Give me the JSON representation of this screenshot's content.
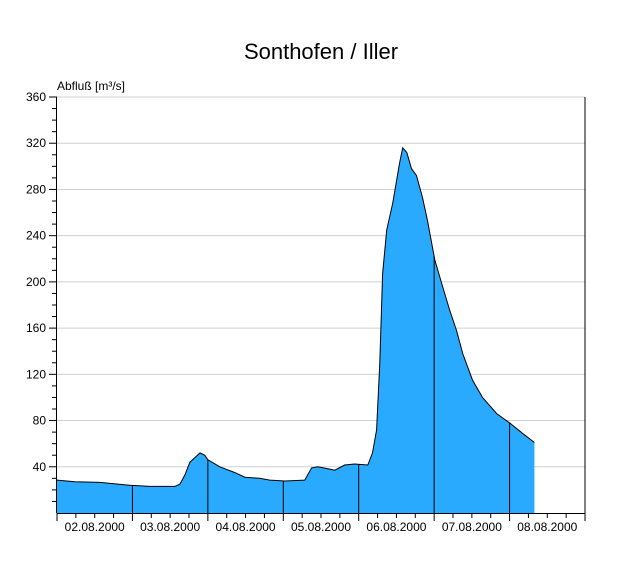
{
  "chart_data": {
    "type": "area",
    "title": "Sonthofen / Iller",
    "ylabel": "Abfluß [m³/s]",
    "xlabel": "",
    "ylim": [
      0,
      360
    ],
    "yticks": [
      40,
      80,
      120,
      160,
      200,
      240,
      280,
      320,
      360
    ],
    "x_unit": "hours since 02.08.2000 00:00",
    "xlim": [
      0,
      168
    ],
    "day_labels": [
      "02.08.2000",
      "03.08.2000",
      "04.08.2000",
      "05.08.2000",
      "06.08.2000",
      "07.08.2000",
      "08.08.2000"
    ],
    "grid": true,
    "fill_color": "#2aaaff",
    "series": [
      {
        "name": "Abfluß",
        "x": [
          0,
          5.7,
          13.7,
          23.2,
          29.6,
          37.5,
          39.1,
          40.7,
          42.3,
          43.9,
          45.5,
          47,
          48,
          51.8,
          56.6,
          59.8,
          64.5,
          67.7,
          72.5,
          78.8,
          81,
          83,
          86.8,
          88.4,
          91.5,
          94.7,
          98.9,
          100.4,
          101.7,
          102.7,
          103.6,
          104.9,
          106.8,
          109,
          110,
          111.3,
          112.8,
          114.4,
          116.3,
          117.9,
          120.2,
          122.7,
          124.9,
          127.1,
          129.1,
          132.2,
          135.4,
          139.9,
          144,
          148.1,
          151.9
        ],
        "values": [
          28.5,
          27,
          26.5,
          24,
          23,
          23,
          25,
          33,
          44,
          48,
          52,
          50,
          46,
          40,
          35,
          31,
          30,
          28.5,
          27.7,
          28.5,
          39,
          40,
          38,
          37,
          41.5,
          42.4,
          41.5,
          52,
          72,
          130,
          207,
          245,
          268,
          303,
          316,
          312,
          298,
          292,
          273,
          253,
          219,
          196,
          176,
          158,
          138,
          115,
          100,
          86,
          78,
          69,
          61
        ]
      }
    ]
  }
}
